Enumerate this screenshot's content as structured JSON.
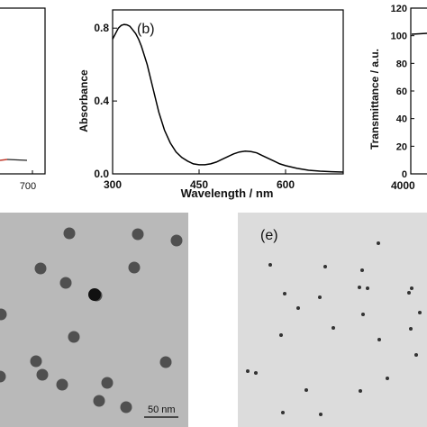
{
  "panels": {
    "a": {
      "tick_700": "700"
    },
    "b": {
      "panel_label": "(b)",
      "xlabel": "Wavelength / nm",
      "ylabel": "Absorbance"
    },
    "c": {
      "ylabel": "Transmittance / a.u.",
      "x_tick_first": "4000"
    },
    "d": {
      "scale_bar": "50 nm"
    },
    "e": {
      "panel_label": "(e)"
    }
  },
  "chart_data": [
    {
      "panel": "b",
      "type": "line",
      "title": "",
      "xlabel": "Wavelength / nm",
      "ylabel": "Absorbance",
      "xlim": [
        300,
        700
      ],
      "ylim": [
        0,
        0.9
      ],
      "x_ticks": [
        300,
        450,
        600
      ],
      "y_ticks": [
        0.0,
        0.4,
        0.8
      ],
      "x_tick_labels": [
        "300",
        "450",
        "600"
      ],
      "y_tick_labels": [
        "0.0",
        "0.4",
        "0.8"
      ],
      "series": [
        {
          "color": "#000000",
          "x": [
            300,
            305,
            310,
            315,
            320,
            325,
            330,
            335,
            340,
            345,
            350,
            360,
            370,
            380,
            390,
            400,
            410,
            420,
            430,
            440,
            450,
            460,
            470,
            480,
            490,
            500,
            510,
            520,
            530,
            540,
            550,
            560,
            570,
            580,
            590,
            600,
            620,
            640,
            660,
            680,
            700
          ],
          "y": [
            0.74,
            0.77,
            0.8,
            0.815,
            0.82,
            0.818,
            0.81,
            0.79,
            0.77,
            0.74,
            0.7,
            0.6,
            0.47,
            0.34,
            0.24,
            0.17,
            0.12,
            0.09,
            0.07,
            0.055,
            0.05,
            0.05,
            0.055,
            0.065,
            0.08,
            0.095,
            0.11,
            0.12,
            0.125,
            0.122,
            0.115,
            0.1,
            0.085,
            0.07,
            0.055,
            0.045,
            0.03,
            0.02,
            0.015,
            0.012,
            0.01
          ]
        }
      ]
    },
    {
      "panel": "c",
      "type": "line",
      "ylabel": "Transmittance / a.u.",
      "ylim": [
        0,
        120
      ],
      "y_ticks": [
        0,
        20,
        40,
        60,
        80,
        100,
        120
      ],
      "y_tick_labels": [
        "0",
        "20",
        "40",
        "60",
        "80",
        "100",
        "120"
      ],
      "x_tick_labels": [
        "4000"
      ],
      "series": [
        {
          "color": "#000000",
          "y": [
            100
          ]
        }
      ]
    }
  ],
  "micrographs": {
    "d": {
      "background": "#b9b9b9",
      "particle_color": "#505050",
      "particles": [
        [
          1,
          349
        ],
        [
          45,
          298
        ],
        [
          73,
          314
        ],
        [
          107,
          328
        ],
        [
          149,
          297
        ],
        [
          153,
          260
        ],
        [
          77,
          259
        ],
        [
          196,
          267
        ],
        [
          82,
          374
        ],
        [
          40,
          401
        ],
        [
          47,
          416
        ],
        [
          69,
          427
        ],
        [
          119,
          425
        ],
        [
          110,
          445
        ],
        [
          140,
          452
        ],
        [
          184,
          402
        ],
        [
          0,
          418
        ]
      ],
      "dark_particle": [
        105,
        327
      ]
    },
    "e": {
      "background": "#dcdcdc",
      "particle_color": "#333333",
      "particles": [
        [
          300,
          294
        ],
        [
          361,
          296
        ],
        [
          402,
          300
        ],
        [
          420,
          270
        ],
        [
          355,
          330
        ],
        [
          399,
          319
        ],
        [
          331,
          342
        ],
        [
          454,
          325
        ],
        [
          316,
          326
        ],
        [
          370,
          364
        ],
        [
          403,
          349
        ],
        [
          421,
          377
        ],
        [
          456,
          365
        ],
        [
          466,
          347
        ],
        [
          457,
          320
        ],
        [
          275,
          412
        ],
        [
          284,
          414
        ],
        [
          356,
          460
        ],
        [
          312,
          372
        ],
        [
          340,
          433
        ],
        [
          400,
          434
        ],
        [
          430,
          420
        ],
        [
          314,
          458
        ],
        [
          408,
          320
        ],
        [
          462,
          394
        ]
      ]
    }
  }
}
